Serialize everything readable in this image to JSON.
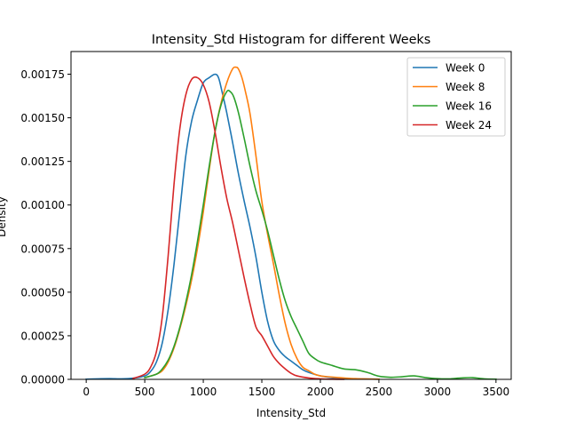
{
  "chart_data": {
    "type": "line",
    "title": "Intensity_Std Histogram for different Weeks",
    "xlabel": "Intensity_Std",
    "ylabel": "Density",
    "xlim": [
      -130,
      3630
    ],
    "ylim": [
      0,
      0.00188
    ],
    "x_ticks": [
      0,
      500,
      1000,
      1500,
      2000,
      2500,
      3000,
      3500
    ],
    "x_tick_labels": [
      "0",
      "500",
      "1000",
      "1500",
      "2000",
      "2500",
      "3000",
      "3500"
    ],
    "y_ticks": [
      0,
      0.00025,
      0.0005,
      0.00075,
      0.001,
      0.00125,
      0.0015,
      0.00175
    ],
    "y_tick_labels": [
      "0.00000",
      "0.00025",
      "0.00050",
      "0.00075",
      "0.00100",
      "0.00125",
      "0.00150",
      "0.00175"
    ],
    "grid": false,
    "legend_position": "top-right",
    "series": [
      {
        "name": "Week 0",
        "color": "#1f77b4",
        "x": [
          0,
          100,
          200,
          300,
          400,
          500,
          550,
          600,
          650,
          700,
          750,
          800,
          850,
          900,
          950,
          1000,
          1050,
          1100,
          1130,
          1160,
          1200,
          1250,
          1300,
          1350,
          1400,
          1450,
          1500,
          1550,
          1600,
          1650,
          1700,
          1750,
          1800,
          1850,
          1900,
          2000,
          2100,
          2200,
          2300,
          2500
        ],
        "y": [
          1e-06,
          3e-06,
          4e-06,
          3e-06,
          7e-06,
          2e-05,
          4.5e-05,
          0.0001,
          0.00021,
          0.0004,
          0.00066,
          0.00097,
          0.00128,
          0.00148,
          0.0016,
          0.0017,
          0.00173,
          0.00175,
          0.00173,
          0.00165,
          0.00153,
          0.00136,
          0.00118,
          0.00102,
          0.00087,
          0.0007,
          0.0005,
          0.00033,
          0.00022,
          0.000165,
          0.00013,
          0.000105,
          8e-05,
          5.5e-05,
          4e-05,
          2e-05,
          1e-05,
          5e-06,
          3e-06,
          1e-06
        ]
      },
      {
        "name": "Week 8",
        "color": "#ff7f0e",
        "x": [
          500,
          600,
          650,
          700,
          750,
          800,
          850,
          900,
          950,
          1000,
          1050,
          1100,
          1150,
          1200,
          1250,
          1280,
          1300,
          1330,
          1360,
          1400,
          1450,
          1500,
          1550,
          1600,
          1650,
          1700,
          1750,
          1800,
          1850,
          1900,
          1950,
          2000,
          2050,
          2100,
          2200,
          2300,
          2400,
          2500
        ],
        "y": [
          1e-05,
          3e-05,
          5e-05,
          0.0001,
          0.00018,
          0.00029,
          0.00042,
          0.00057,
          0.00075,
          0.00096,
          0.0012,
          0.00142,
          0.00158,
          0.0017,
          0.00178,
          0.00179,
          0.00178,
          0.00173,
          0.00165,
          0.00152,
          0.00128,
          0.00102,
          0.00083,
          0.00066,
          0.00048,
          0.00032,
          0.0002,
          0.00012,
          7e-05,
          5e-05,
          3e-05,
          2e-05,
          1.6e-05,
          1.3e-05,
          8e-06,
          4e-06,
          2e-06,
          1e-06
        ]
      },
      {
        "name": "Week 16",
        "color": "#2ca02c",
        "x": [
          500,
          600,
          650,
          700,
          750,
          800,
          850,
          900,
          950,
          1000,
          1050,
          1100,
          1150,
          1200,
          1230,
          1260,
          1300,
          1350,
          1400,
          1450,
          1500,
          1550,
          1600,
          1650,
          1700,
          1750,
          1800,
          1850,
          1900,
          1950,
          2000,
          2100,
          2200,
          2300,
          2400,
          2500,
          2600,
          2700,
          2800,
          2900,
          3000,
          3100,
          3200,
          3300,
          3400,
          3500
        ],
        "y": [
          1e-05,
          3e-05,
          6e-05,
          0.00011,
          0.00019,
          0.0003,
          0.00044,
          0.0006,
          0.00079,
          0.001,
          0.00122,
          0.00142,
          0.00157,
          0.00165,
          0.00165,
          0.00162,
          0.00153,
          0.00138,
          0.00122,
          0.00108,
          0.00097,
          0.00085,
          0.00071,
          0.00057,
          0.00045,
          0.00036,
          0.00029,
          0.00022,
          0.00015,
          0.00012,
          0.0001,
          8e-05,
          6e-05,
          5.5e-05,
          4e-05,
          1.8e-05,
          1.2e-05,
          1.5e-05,
          2e-05,
          1e-05,
          4e-06,
          3e-06,
          8e-06,
          1e-05,
          3e-06,
          1e-06
        ]
      },
      {
        "name": "Week 24",
        "color": "#d62728",
        "x": [
          400,
          500,
          550,
          600,
          650,
          700,
          750,
          800,
          850,
          900,
          950,
          1000,
          1050,
          1100,
          1150,
          1200,
          1250,
          1300,
          1350,
          1400,
          1450,
          1500,
          1550,
          1600,
          1650,
          1700,
          1750,
          1800,
          1900,
          2000,
          2100,
          2200
        ],
        "y": [
          5e-06,
          3e-05,
          7e-05,
          0.00016,
          0.00036,
          0.00071,
          0.00112,
          0.00144,
          0.00163,
          0.00172,
          0.00173,
          0.00169,
          0.00159,
          0.00142,
          0.00122,
          0.00104,
          0.0009,
          0.00074,
          0.00058,
          0.00043,
          0.0003,
          0.00025,
          0.00019,
          0.00013,
          9e-05,
          6e-05,
          3.5e-05,
          2e-05,
          8e-06,
          3e-06,
          1e-06,
          0
        ]
      }
    ]
  }
}
